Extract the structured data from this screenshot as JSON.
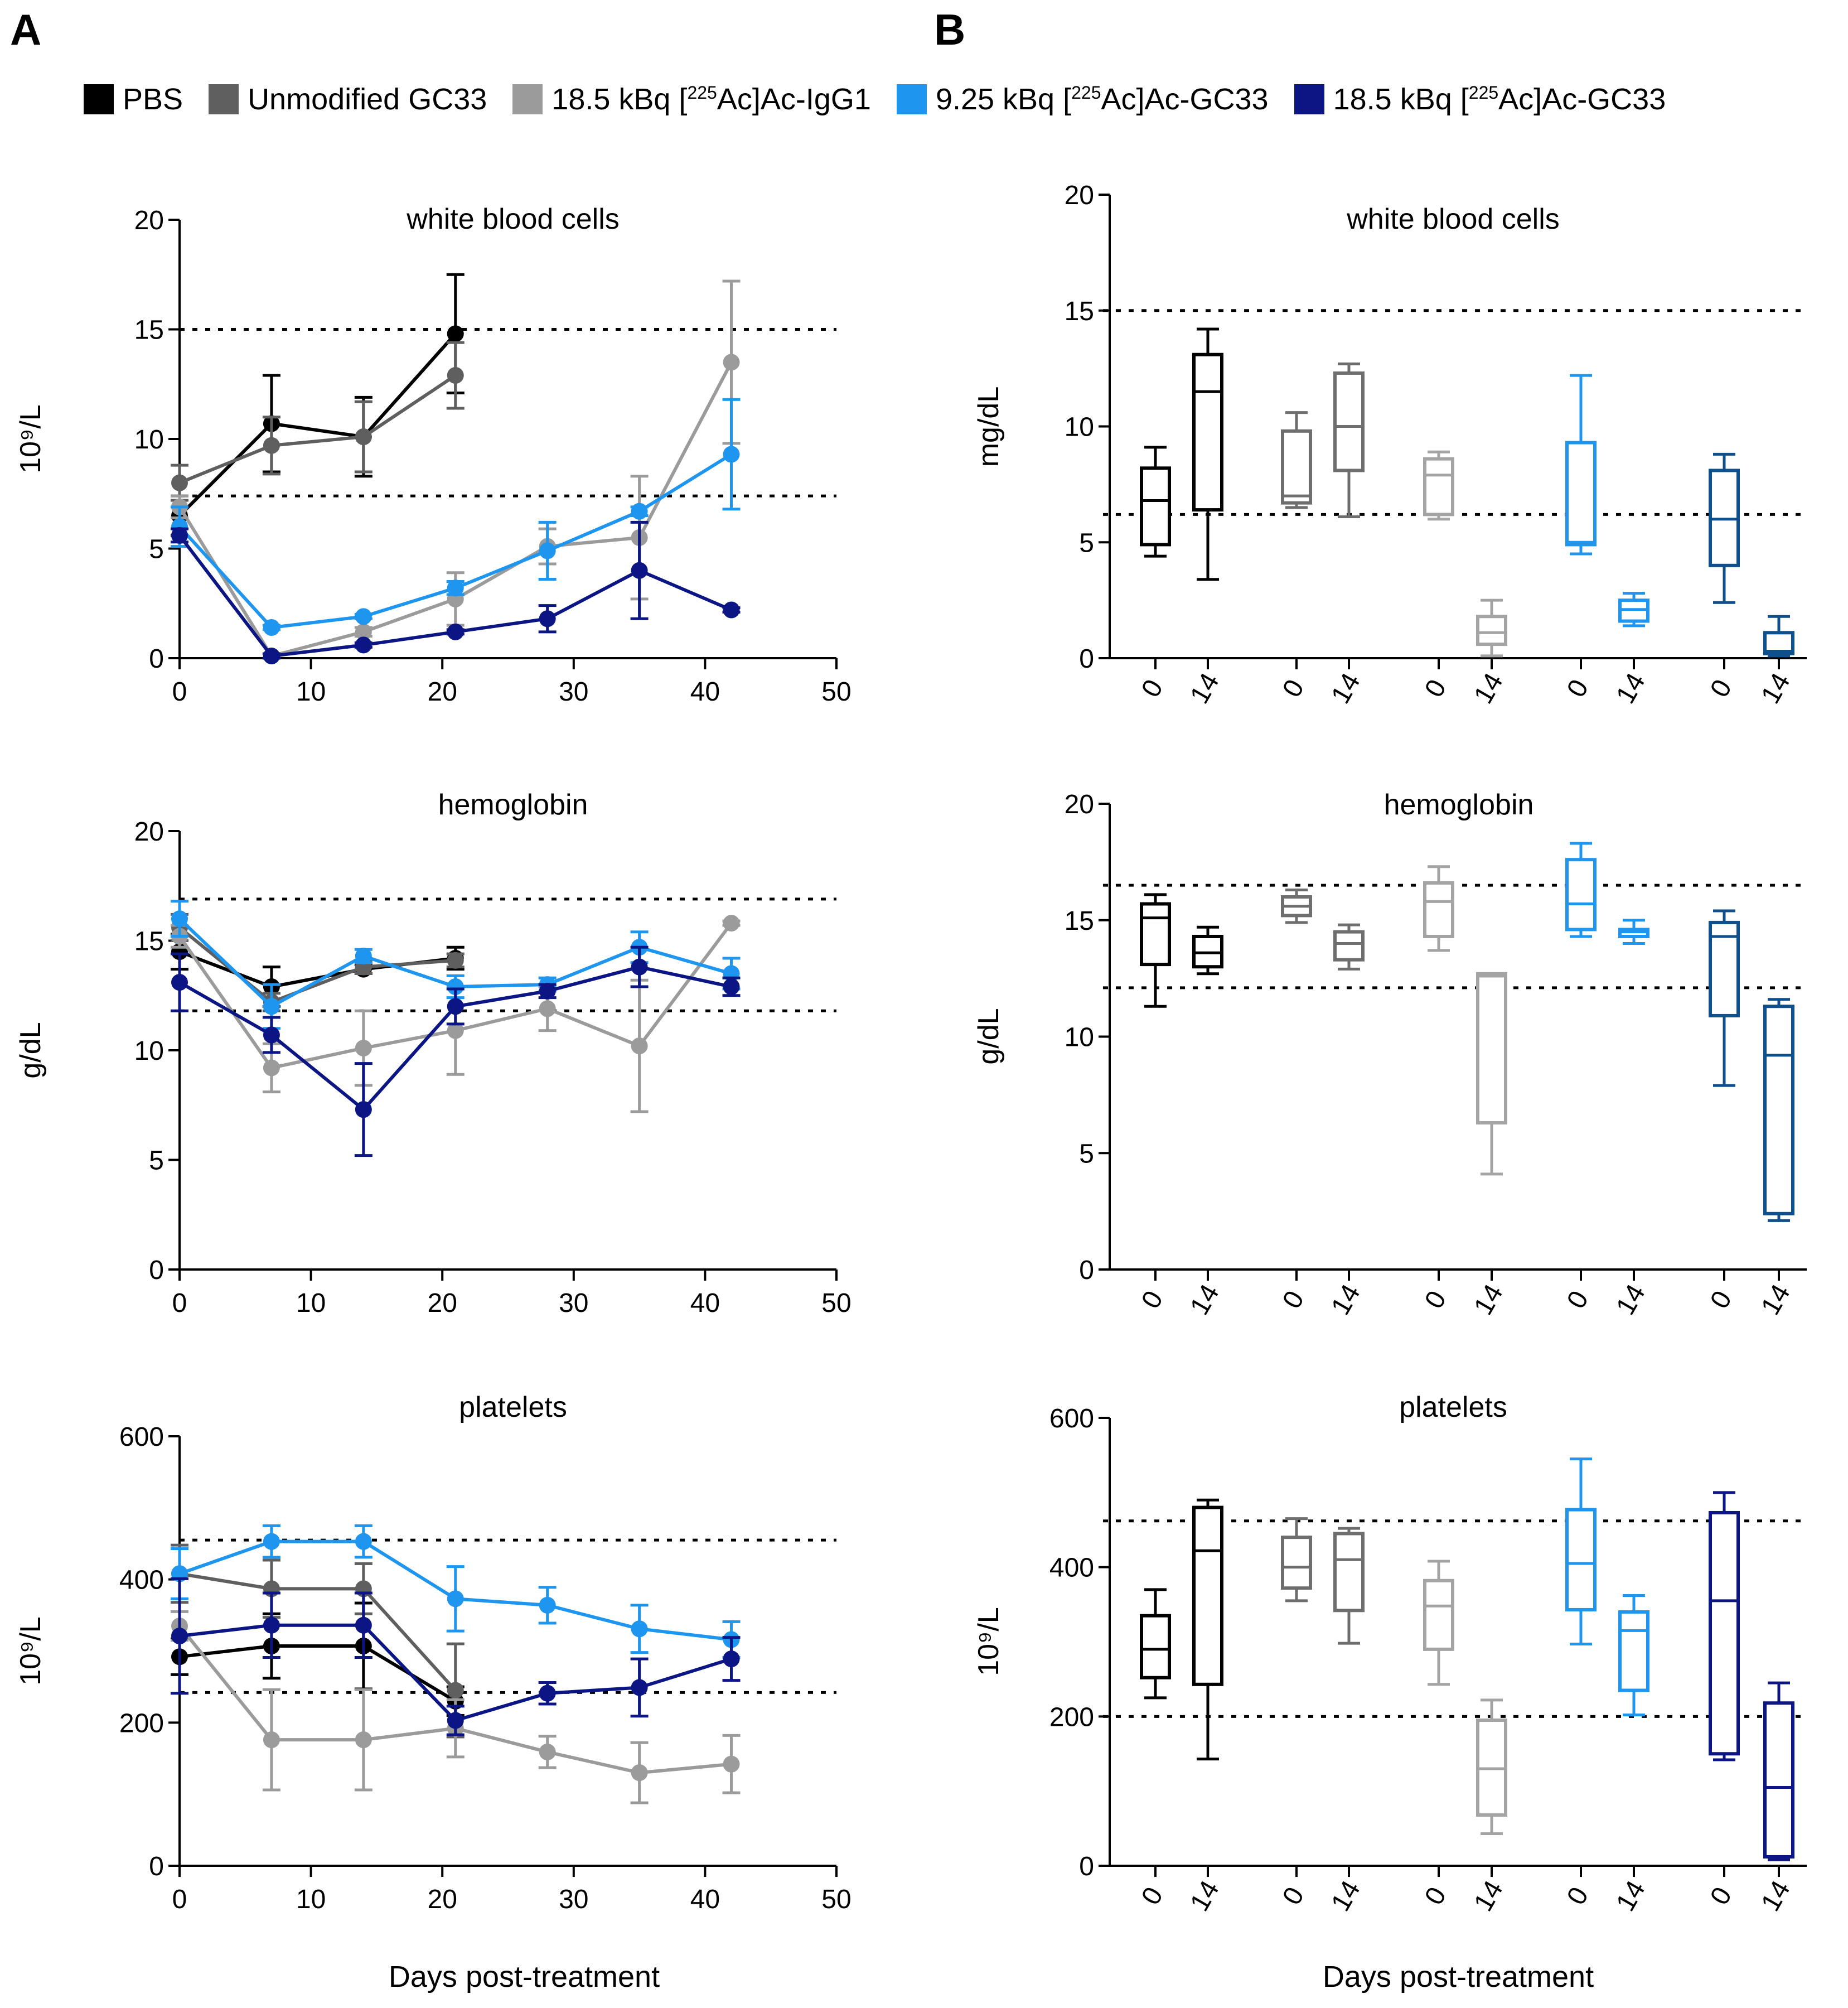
{
  "panels": {
    "a": "A",
    "b": "B"
  },
  "legend": [
    {
      "prefix": "PBS",
      "sup": "",
      "suffix": "",
      "color": "#000000"
    },
    {
      "prefix": "Unmodified GC33",
      "sup": "",
      "suffix": "",
      "color": "#5f5f5f"
    },
    {
      "prefix": "18.5 kBq [",
      "sup": "225",
      "suffix": "Ac]Ac-IgG1",
      "color": "#9b9b9b"
    },
    {
      "prefix": "9.25 kBq [",
      "sup": "225",
      "suffix": "Ac]Ac-GC33",
      "color": "#1e96f0"
    },
    {
      "prefix": "18.5 kBq [",
      "sup": "225",
      "suffix": "Ac]Ac-GC33",
      "color": "#0b1684"
    }
  ],
  "shared": {
    "xlabel": "Days post-treatment",
    "box_categories": [
      "0",
      "14"
    ]
  },
  "chart_data": [
    {
      "type": "line",
      "title": "white blood cells",
      "ylabel": "10⁹/L",
      "xlim": [
        0,
        50
      ],
      "xticks": [
        0,
        10,
        20,
        30,
        40,
        50
      ],
      "ylim": [
        0,
        20
      ],
      "yticks": [
        0,
        5,
        10,
        15,
        20
      ],
      "reference_lines": [
        15,
        7.4
      ],
      "series": [
        {
          "name": "PBS",
          "color": "#000000",
          "points": [
            [
              0,
              6.5,
              0.9
            ],
            [
              7,
              10.7,
              2.2
            ],
            [
              14,
              10.1,
              1.8
            ],
            [
              21,
              14.8,
              2.7
            ]
          ]
        },
        {
          "name": "Unmodified GC33",
          "color": "#5f5f5f",
          "points": [
            [
              0,
              8.0,
              0.8
            ],
            [
              7,
              9.7,
              1.3
            ],
            [
              14,
              10.1,
              1.6
            ],
            [
              21,
              12.9,
              1.5
            ]
          ]
        },
        {
          "name": "18.5 kBq [225Ac]Ac-IgG1",
          "color": "#9b9b9b",
          "points": [
            [
              0,
              6.9,
              0.5
            ],
            [
              7,
              0.1,
              0.1
            ],
            [
              14,
              1.2,
              0.2
            ],
            [
              21,
              2.7,
              1.2
            ],
            [
              28,
              5.1,
              0.8
            ],
            [
              35,
              5.5,
              2.8
            ],
            [
              42,
              13.5,
              3.7
            ]
          ]
        },
        {
          "name": "9.25 kBq [225Ac]Ac-GC33",
          "color": "#1e96f0",
          "points": [
            [
              0,
              6.0,
              0.9
            ],
            [
              7,
              1.4,
              0.1
            ],
            [
              14,
              1.9,
              0.1
            ],
            [
              21,
              3.2,
              0.3
            ],
            [
              28,
              4.9,
              1.3
            ],
            [
              35,
              6.7,
              0.2
            ],
            [
              42,
              9.3,
              2.5
            ]
          ]
        },
        {
          "name": "18.5 kBq [225Ac]Ac-GC33",
          "color": "#0b1684",
          "points": [
            [
              0,
              5.6,
              0.3
            ],
            [
              7,
              0.1,
              0.1
            ],
            [
              14,
              0.6,
              0.1
            ],
            [
              21,
              1.2,
              0.1
            ],
            [
              28,
              1.8,
              0.6
            ],
            [
              35,
              4.0,
              2.2
            ],
            [
              42,
              2.2,
              0.1
            ]
          ]
        }
      ]
    },
    {
      "type": "line",
      "title": "hemoglobin",
      "ylabel": "g/dL",
      "xlim": [
        0,
        50
      ],
      "xticks": [
        0,
        10,
        20,
        30,
        40,
        50
      ],
      "ylim": [
        0,
        20
      ],
      "yticks": [
        0,
        5,
        10,
        15,
        20
      ],
      "reference_lines": [
        16.9,
        11.8
      ],
      "series": [
        {
          "name": "PBS",
          "color": "#000000",
          "points": [
            [
              0,
              14.5,
              0.8
            ],
            [
              7,
              12.9,
              0.9
            ],
            [
              14,
              13.7,
              0.2
            ],
            [
              21,
              14.2,
              0.5
            ]
          ]
        },
        {
          "name": "Unmodified GC33",
          "color": "#5f5f5f",
          "points": [
            [
              0,
              15.6,
              0.6
            ],
            [
              7,
              12.2,
              0.4
            ],
            [
              14,
              13.8,
              0.3
            ],
            [
              21,
              14.1,
              0.3
            ]
          ]
        },
        {
          "name": "18.5 kBq [225Ac]Ac-IgG1",
          "color": "#9b9b9b",
          "points": [
            [
              0,
              15.2,
              0.5
            ],
            [
              7,
              9.2,
              1.1
            ],
            [
              14,
              10.1,
              1.7
            ],
            [
              21,
              10.9,
              2.0
            ],
            [
              28,
              11.9,
              1.0
            ],
            [
              35,
              10.2,
              3.0
            ],
            [
              42,
              15.8,
              0.1
            ]
          ]
        },
        {
          "name": "9.25 kBq [225Ac]Ac-GC33",
          "color": "#1e96f0",
          "points": [
            [
              0,
              16.0,
              0.8
            ],
            [
              7,
              12.0,
              1.0
            ],
            [
              14,
              14.3,
              0.3
            ],
            [
              21,
              12.9,
              0.5
            ],
            [
              28,
              13.0,
              0.3
            ],
            [
              35,
              14.7,
              0.7
            ],
            [
              42,
              13.5,
              0.7
            ]
          ]
        },
        {
          "name": "18.5 kBq [225Ac]Ac-GC33",
          "color": "#0b1684",
          "points": [
            [
              0,
              13.1,
              1.3
            ],
            [
              7,
              10.7,
              0.8
            ],
            [
              14,
              7.3,
              2.1
            ],
            [
              21,
              12.0,
              0.8
            ],
            [
              28,
              12.7,
              0.3
            ],
            [
              35,
              13.8,
              0.9
            ],
            [
              42,
              12.9,
              0.4
            ]
          ]
        }
      ]
    },
    {
      "type": "line",
      "title": "platelets",
      "ylabel": "10⁹/L",
      "xlim": [
        0,
        50
      ],
      "xticks": [
        0,
        10,
        20,
        30,
        40,
        50
      ],
      "ylim": [
        0,
        600
      ],
      "yticks": [
        0,
        200,
        400,
        600
      ],
      "reference_lines": [
        455,
        242
      ],
      "series": [
        {
          "name": "PBS",
          "color": "#000000",
          "points": [
            [
              0,
              292,
              25
            ],
            [
              7,
              307,
              45
            ],
            [
              14,
              307,
              60
            ],
            [
              21,
              230,
              20
            ]
          ]
        },
        {
          "name": "Unmodified GC33",
          "color": "#5f5f5f",
          "points": [
            [
              0,
              408,
              40
            ],
            [
              7,
              387,
              40
            ],
            [
              14,
              387,
              35
            ],
            [
              21,
              245,
              65
            ]
          ]
        },
        {
          "name": "18.5 kBq [225Ac]Ac-IgG1",
          "color": "#9b9b9b",
          "points": [
            [
              0,
              335,
              20
            ],
            [
              7,
              176,
              70
            ],
            [
              14,
              176,
              70
            ],
            [
              21,
              192,
              40
            ],
            [
              28,
              159,
              22
            ],
            [
              35,
              130,
              42
            ],
            [
              42,
              142,
              40
            ]
          ]
        },
        {
          "name": "9.25 kBq [225Ac]Ac-GC33",
          "color": "#1e96f0",
          "points": [
            [
              0,
              408,
              35
            ],
            [
              7,
              453,
              22
            ],
            [
              14,
              453,
              22
            ],
            [
              21,
              373,
              45
            ],
            [
              28,
              364,
              25
            ],
            [
              35,
              331,
              33
            ],
            [
              42,
              316,
              25
            ]
          ]
        },
        {
          "name": "18.5 kBq [225Ac]Ac-GC33",
          "color": "#0b1684",
          "points": [
            [
              0,
              321,
              80
            ],
            [
              7,
              336,
              45
            ],
            [
              14,
              336,
              45
            ],
            [
              21,
              203,
              20
            ],
            [
              28,
              241,
              15
            ],
            [
              35,
              249,
              40
            ],
            [
              42,
              289,
              30
            ]
          ]
        }
      ]
    },
    {
      "type": "box",
      "title": "white blood cells",
      "ylabel": "mg/dL",
      "ylim": [
        0,
        20
      ],
      "yticks": [
        0,
        5,
        10,
        15,
        20
      ],
      "reference_lines": [
        15,
        6.2
      ],
      "groups": [
        {
          "name": "PBS",
          "color": "#000000",
          "boxes": [
            [
              4.4,
              4.9,
              6.8,
              8.2,
              9.1
            ],
            [
              3.4,
              6.4,
              11.5,
              13.1,
              14.2
            ]
          ]
        },
        {
          "name": "Unmodified GC33",
          "color": "#6e6e6e",
          "boxes": [
            [
              6.5,
              6.7,
              7.0,
              9.8,
              10.6
            ],
            [
              6.1,
              8.1,
              10.0,
              12.3,
              12.7
            ]
          ]
        },
        {
          "name": "18.5 kBq [225Ac]Ac-IgG1",
          "color": "#a4a4a4",
          "boxes": [
            [
              6.0,
              6.2,
              7.9,
              8.6,
              8.9
            ],
            [
              0.1,
              0.6,
              1.1,
              1.8,
              2.5
            ]
          ]
        },
        {
          "name": "9.25 kBq [225Ac]Ac-GC33",
          "color": "#1e96f0",
          "boxes": [
            [
              4.5,
              4.9,
              5.0,
              9.3,
              12.2
            ],
            [
              1.4,
              1.6,
              2.1,
              2.5,
              2.8
            ]
          ]
        },
        {
          "name": "18.5 kBq [225Ac]Ac-GC33",
          "color": "#0f4f8c",
          "boxes": [
            [
              2.4,
              4.0,
              6.0,
              8.1,
              8.8
            ],
            [
              0.1,
              0.2,
              0.3,
              1.1,
              1.8
            ]
          ]
        }
      ]
    },
    {
      "type": "box",
      "title": "hemoglobin",
      "ylabel": "g/dL",
      "ylim": [
        0,
        20
      ],
      "yticks": [
        0,
        5,
        10,
        15,
        20
      ],
      "reference_lines": [
        16.5,
        12.1
      ],
      "groups": [
        {
          "name": "PBS",
          "color": "#000000",
          "boxes": [
            [
              11.3,
              13.1,
              15.1,
              15.7,
              16.1
            ],
            [
              12.7,
              13.0,
              13.6,
              14.3,
              14.7
            ]
          ]
        },
        {
          "name": "Unmodified GC33",
          "color": "#6e6e6e",
          "boxes": [
            [
              14.9,
              15.2,
              15.6,
              16.0,
              16.3
            ],
            [
              12.9,
              13.3,
              14.0,
              14.5,
              14.8
            ]
          ]
        },
        {
          "name": "18.5 kBq [225Ac]Ac-IgG1",
          "color": "#a4a4a4",
          "boxes": [
            [
              13.7,
              14.3,
              15.8,
              16.6,
              17.3
            ],
            [
              4.1,
              6.3,
              12.6,
              12.7,
              12.7
            ]
          ]
        },
        {
          "name": "9.25 kBq [225Ac]Ac-GC33",
          "color": "#1e96f0",
          "boxes": [
            [
              14.3,
              14.6,
              15.7,
              17.6,
              18.3
            ],
            [
              14.0,
              14.3,
              14.5,
              14.6,
              15.0
            ]
          ]
        },
        {
          "name": "18.5 kBq [225Ac]Ac-GC33",
          "color": "#0f4f8c",
          "boxes": [
            [
              7.9,
              10.9,
              14.3,
              14.9,
              15.4
            ],
            [
              2.1,
              2.4,
              9.2,
              11.3,
              11.6
            ]
          ]
        }
      ]
    },
    {
      "type": "box",
      "title": "platelets",
      "ylabel": "10⁹/L",
      "ylim": [
        0,
        600
      ],
      "yticks": [
        0,
        200,
        400,
        600
      ],
      "reference_lines": [
        462,
        200
      ],
      "groups": [
        {
          "name": "PBS",
          "color": "#000000",
          "boxes": [
            [
              225,
              252,
              290,
              335,
              370
            ],
            [
              143,
              243,
              422,
              480,
              490
            ]
          ]
        },
        {
          "name": "Unmodified GC33",
          "color": "#6e6e6e",
          "boxes": [
            [
              355,
              372,
              400,
              440,
              465
            ],
            [
              298,
              342,
              410,
              445,
              452
            ]
          ]
        },
        {
          "name": "18.5 kBq [225Ac]Ac-IgG1",
          "color": "#a4a4a4",
          "boxes": [
            [
              243,
              290,
              348,
              382,
              408
            ],
            [
              43,
              68,
              130,
              195,
              222
            ]
          ]
        },
        {
          "name": "9.25 kBq [225Ac]Ac-GC33",
          "color": "#1e96f0",
          "boxes": [
            [
              297,
              343,
              405,
              477,
              545
            ],
            [
              202,
              235,
              315,
              340,
              362
            ]
          ]
        },
        {
          "name": "18.5 kBq [225Ac]Ac-GC33",
          "color": "#0b1684",
          "boxes": [
            [
              142,
              150,
              355,
              473,
              500
            ],
            [
              8,
              12,
              105,
              218,
              245
            ]
          ]
        }
      ]
    }
  ]
}
